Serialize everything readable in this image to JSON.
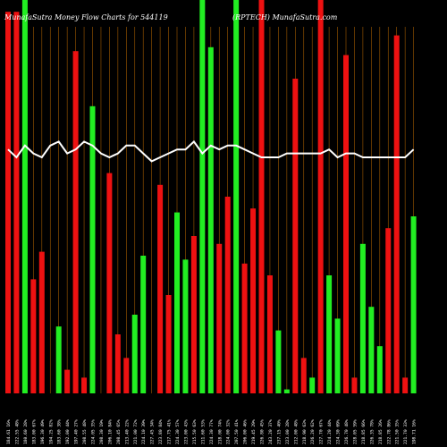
{
  "header": {
    "title": "MunafaSutra  Money Flow  Charts for 544119",
    "subtitle": "(RPTECH) MunafaSutra.com"
  },
  "colors": {
    "background": "#000000",
    "up": "#22ee22",
    "down": "#ee1111",
    "grid": "#a05a00",
    "line": "#ffffff"
  },
  "chart_data": {
    "type": "bar",
    "ylim": [
      0,
      100
    ],
    "grid": "vertical",
    "categories": [
      "184.61 16%",
      "222.55 48%",
      "180.60 28%",
      "183.00 67%",
      "196.30 49%",
      "194.25 82%",
      "183.60 38%",
      "192.00 44%",
      "197.40 27%",
      "208.55 48%",
      "224.05 35%",
      "208.30 19%",
      "206.10 84%",
      "208.45 65%",
      "213.40 22%",
      "221.00 72%",
      "224.10 39%",
      "227.45 34%",
      "223.80 84%",
      "217.75 41%",
      "224.30 57%",
      "223.00 43%",
      "215.50 63%",
      "211.60 53%",
      "224.30 77%",
      "218.00 74%",
      "224.00 32%",
      "207.50 41%",
      "206.00 46%",
      "219.45 29%",
      "226.80 45%",
      "243.20 37%",
      "237.15 40%",
      "223.00 28%",
      "212.00 48%",
      "218.90 63%",
      "226.20 62%",
      "227.70 67%",
      "224.20 44%",
      "224.30 69%",
      "226.70 48%",
      "228.05 59%",
      "218.85 66%",
      "226.35 78%",
      "218.85 26%",
      "222.78 86%",
      "221.50 35%",
      "221.70 33%",
      "198.71 16%"
    ],
    "series": [
      {
        "values": [
          97,
          97,
          100,
          29,
          36,
          0,
          17,
          6,
          87,
          4,
          73,
          0,
          56,
          15,
          9,
          20,
          35,
          0,
          53,
          25,
          46,
          34,
          40,
          100,
          88,
          38,
          50,
          100,
          33,
          47,
          100,
          30,
          16,
          1,
          80,
          9,
          4,
          100,
          30,
          19,
          86,
          4,
          38,
          22,
          12,
          42,
          91,
          4,
          45
        ],
        "colors": [
          "down",
          "down",
          "up",
          "down",
          "down",
          "up",
          "up",
          "down",
          "down",
          "down",
          "up",
          "down",
          "down",
          "down",
          "down",
          "up",
          "up",
          "down",
          "down",
          "down",
          "up",
          "up",
          "down",
          "up",
          "up",
          "down",
          "down",
          "up",
          "down",
          "down",
          "down",
          "down",
          "up",
          "up",
          "down",
          "down",
          "up",
          "down",
          "up",
          "up",
          "down",
          "down",
          "up",
          "up",
          "up",
          "down",
          "down",
          "down",
          "up"
        ]
      },
      {
        "name": "line",
        "values": [
          62,
          60,
          63,
          61,
          60,
          63,
          64,
          61,
          62,
          64,
          63,
          61,
          60,
          61,
          63,
          63,
          61,
          59,
          60,
          61,
          62,
          62,
          64,
          61,
          63,
          62,
          63,
          63,
          62,
          61,
          60,
          60,
          60,
          61,
          61,
          61,
          61,
          61,
          62,
          60,
          61,
          61,
          60,
          60,
          60,
          60,
          60,
          60,
          62
        ]
      }
    ]
  }
}
